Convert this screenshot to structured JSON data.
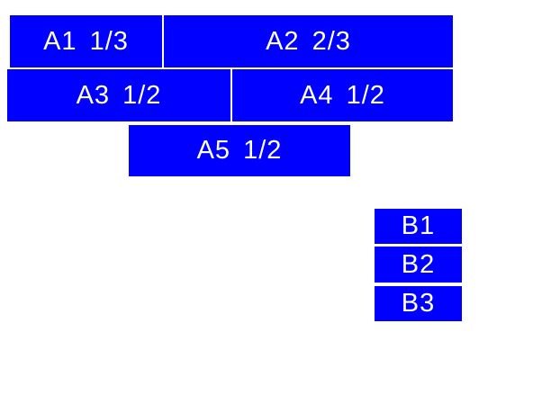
{
  "colors": {
    "box_background": "#0000ff",
    "box_text": "#ffffff",
    "page_background": "#ffffff"
  },
  "group_a": {
    "a1": {
      "label": "A1 1/3"
    },
    "a2": {
      "label": "A2 2/3"
    },
    "a3": {
      "label": "A3 1/2"
    },
    "a4": {
      "label": "A4 1/2"
    },
    "a5": {
      "label": "A5 1/2"
    }
  },
  "group_b": {
    "b1": {
      "label": "B1"
    },
    "b2": {
      "label": "B2"
    },
    "b3": {
      "label": "B3"
    }
  }
}
